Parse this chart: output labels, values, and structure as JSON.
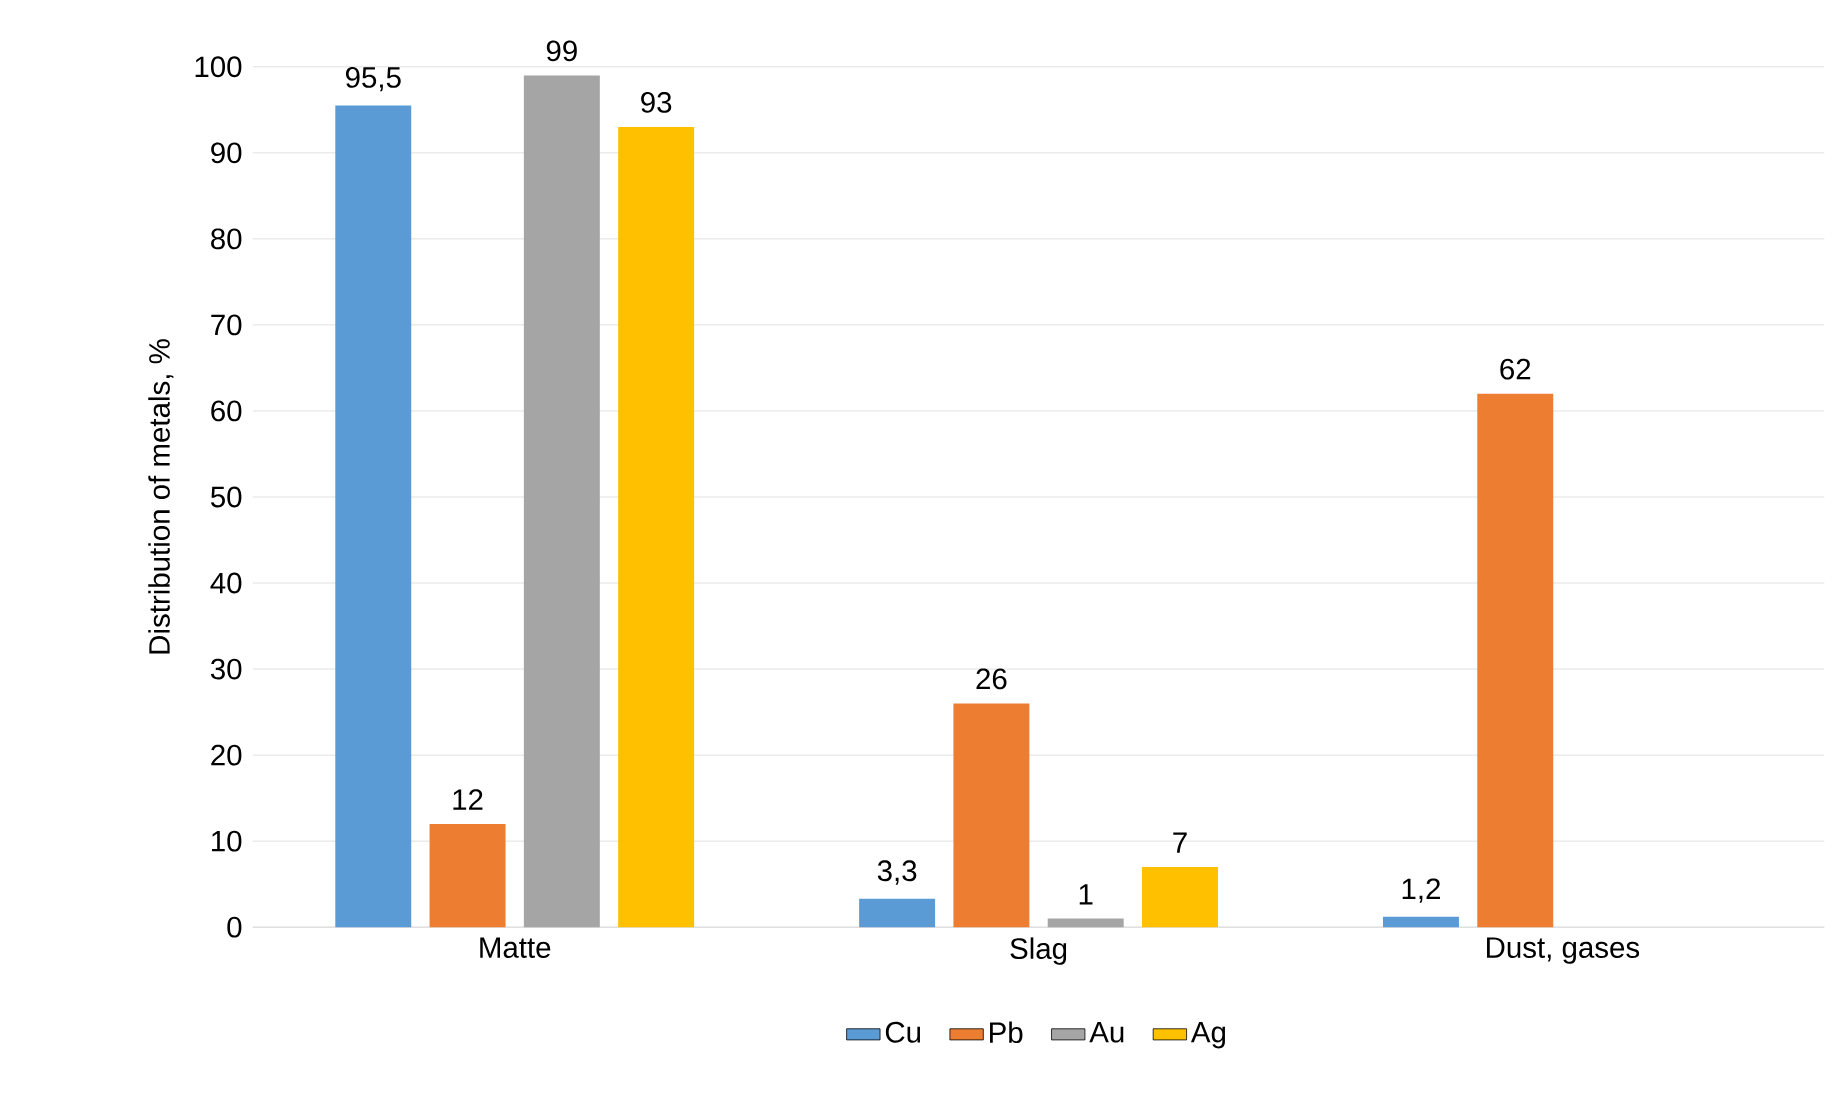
{
  "chart_data": {
    "type": "bar",
    "ylabel": "Distribution of metals, %",
    "categories": [
      "Matte",
      "Slag",
      "Dust, gases"
    ],
    "series": [
      {
        "name": "Cu",
        "color": "#5b9bd5",
        "values": [
          95.5,
          3.3,
          1.2
        ],
        "value_labels": [
          "95,5",
          "3,3",
          "1,2"
        ]
      },
      {
        "name": "Pb",
        "color": "#ed7d31",
        "values": [
          12,
          26,
          62
        ],
        "value_labels": [
          "12",
          "26",
          "62"
        ]
      },
      {
        "name": "Au",
        "color": "#a5a5a5",
        "values": [
          99,
          1,
          null
        ],
        "value_labels": [
          "99",
          "1",
          null
        ]
      },
      {
        "name": "Ag",
        "color": "#ffc000",
        "values": [
          93,
          7,
          null
        ],
        "value_labels": [
          "93",
          "7",
          null
        ]
      }
    ],
    "ylim": [
      0,
      100
    ],
    "yticks": [
      0,
      10,
      20,
      30,
      40,
      50,
      60,
      70,
      80,
      90,
      100
    ],
    "grid": "y",
    "legend": "bottom"
  }
}
